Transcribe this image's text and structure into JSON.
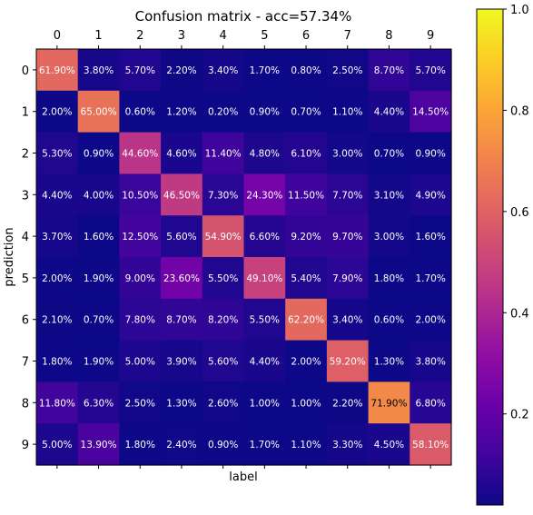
{
  "chart_data": {
    "type": "heatmap",
    "title": "Confusion matrix - acc=57.34%",
    "xlabel": "label",
    "ylabel": "prediction",
    "x_ticks": [
      "0",
      "1",
      "2",
      "3",
      "4",
      "5",
      "6",
      "7",
      "8",
      "9"
    ],
    "y_ticks": [
      "0",
      "1",
      "2",
      "3",
      "4",
      "5",
      "6",
      "7",
      "8",
      "9"
    ],
    "x_axis_position": "top",
    "colormap": "plasma",
    "colorbar": {
      "range": [
        0.02,
        1.0
      ],
      "ticks": [
        0.2,
        0.4,
        0.6,
        0.8,
        1.0
      ],
      "tick_labels": [
        "0.2",
        "0.4",
        "0.6",
        "0.8",
        "1.0"
      ]
    },
    "values": [
      [
        0.619,
        0.038,
        0.057,
        0.022,
        0.034,
        0.017,
        0.008,
        0.025,
        0.087,
        0.057
      ],
      [
        0.02,
        0.65,
        0.006,
        0.012,
        0.002,
        0.009,
        0.007,
        0.011,
        0.044,
        0.145
      ],
      [
        0.053,
        0.009,
        0.446,
        0.046,
        0.114,
        0.048,
        0.061,
        0.03,
        0.007,
        0.009
      ],
      [
        0.044,
        0.04,
        0.105,
        0.465,
        0.073,
        0.243,
        0.115,
        0.077,
        0.031,
        0.049
      ],
      [
        0.037,
        0.016,
        0.125,
        0.056,
        0.549,
        0.066,
        0.092,
        0.097,
        0.03,
        0.016
      ],
      [
        0.02,
        0.019,
        0.09,
        0.236,
        0.055,
        0.491,
        0.054,
        0.079,
        0.018,
        0.017
      ],
      [
        0.021,
        0.007,
        0.078,
        0.087,
        0.082,
        0.055,
        0.622,
        0.034,
        0.006,
        0.02
      ],
      [
        0.018,
        0.019,
        0.05,
        0.039,
        0.056,
        0.044,
        0.02,
        0.592,
        0.013,
        0.038
      ],
      [
        0.118,
        0.063,
        0.025,
        0.013,
        0.026,
        0.01,
        0.01,
        0.022,
        0.719,
        0.068
      ],
      [
        0.05,
        0.139,
        0.018,
        0.024,
        0.009,
        0.017,
        0.011,
        0.033,
        0.045,
        0.581
      ]
    ],
    "cell_labels": [
      [
        "61.90%",
        "3.80%",
        "5.70%",
        "2.20%",
        "3.40%",
        "1.70%",
        "0.80%",
        "2.50%",
        "8.70%",
        "5.70%"
      ],
      [
        "2.00%",
        "65.00%",
        "0.60%",
        "1.20%",
        "0.20%",
        "0.90%",
        "0.70%",
        "1.10%",
        "4.40%",
        "14.50%"
      ],
      [
        "5.30%",
        "0.90%",
        "44.60%",
        "4.60%",
        "11.40%",
        "4.80%",
        "6.10%",
        "3.00%",
        "0.70%",
        "0.90%"
      ],
      [
        "4.40%",
        "4.00%",
        "10.50%",
        "46.50%",
        "7.30%",
        "24.30%",
        "11.50%",
        "7.70%",
        "3.10%",
        "4.90%"
      ],
      [
        "3.70%",
        "1.60%",
        "12.50%",
        "5.60%",
        "54.90%",
        "6.60%",
        "9.20%",
        "9.70%",
        "3.00%",
        "1.60%"
      ],
      [
        "2.00%",
        "1.90%",
        "9.00%",
        "23.60%",
        "5.50%",
        "49.10%",
        "5.40%",
        "7.90%",
        "1.80%",
        "1.70%"
      ],
      [
        "2.10%",
        "0.70%",
        "7.80%",
        "8.70%",
        "8.20%",
        "5.50%",
        "62.20%",
        "3.40%",
        "0.60%",
        "2.00%"
      ],
      [
        "1.80%",
        "1.90%",
        "5.00%",
        "3.90%",
        "5.60%",
        "4.40%",
        "2.00%",
        "59.20%",
        "1.30%",
        "3.80%"
      ],
      [
        "11.80%",
        "6.30%",
        "2.50%",
        "1.30%",
        "2.60%",
        "1.00%",
        "1.00%",
        "2.20%",
        "71.90%",
        "6.80%"
      ],
      [
        "5.00%",
        "13.90%",
        "1.80%",
        "2.40%",
        "0.90%",
        "1.70%",
        "1.10%",
        "3.30%",
        "4.50%",
        "58.10%"
      ]
    ]
  }
}
